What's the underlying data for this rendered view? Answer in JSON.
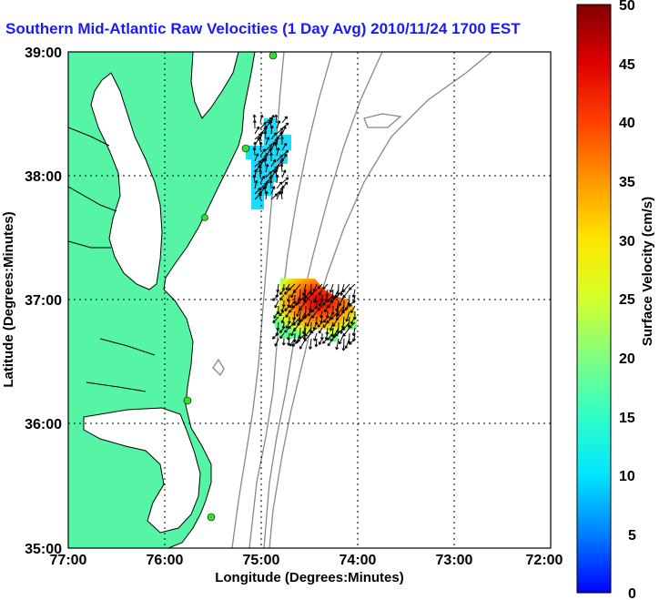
{
  "title": "Southern Mid-Atlantic Raw Velocities (1 Day Avg) 2010/11/24 1700 EST",
  "map": {
    "x_axis": {
      "label": "Longitude (Degrees:Minutes)",
      "ticks": [
        "77:00",
        "76:00",
        "75:00",
        "74:00",
        "73:00",
        "72:00"
      ]
    },
    "y_axis": {
      "label": "Latitude (Degrees:Minutes)",
      "ticks": [
        "39:00",
        "38:00",
        "37:00",
        "36:00",
        "35:00"
      ]
    },
    "extent": {
      "lon_min": -77,
      "lon_max": -72,
      "lat_min": 35,
      "lat_max": 39
    }
  },
  "colorbar": {
    "label": "Surface Velocity (cm/s)",
    "ticks": [
      "50",
      "45",
      "40",
      "35",
      "30",
      "25",
      "20",
      "15",
      "10",
      "5",
      "0"
    ],
    "min": 0,
    "max": 50
  },
  "colors": {
    "land": "#55f5a5",
    "title": "#1a1aff",
    "station": "#33dd33",
    "contour": "#888888"
  }
}
